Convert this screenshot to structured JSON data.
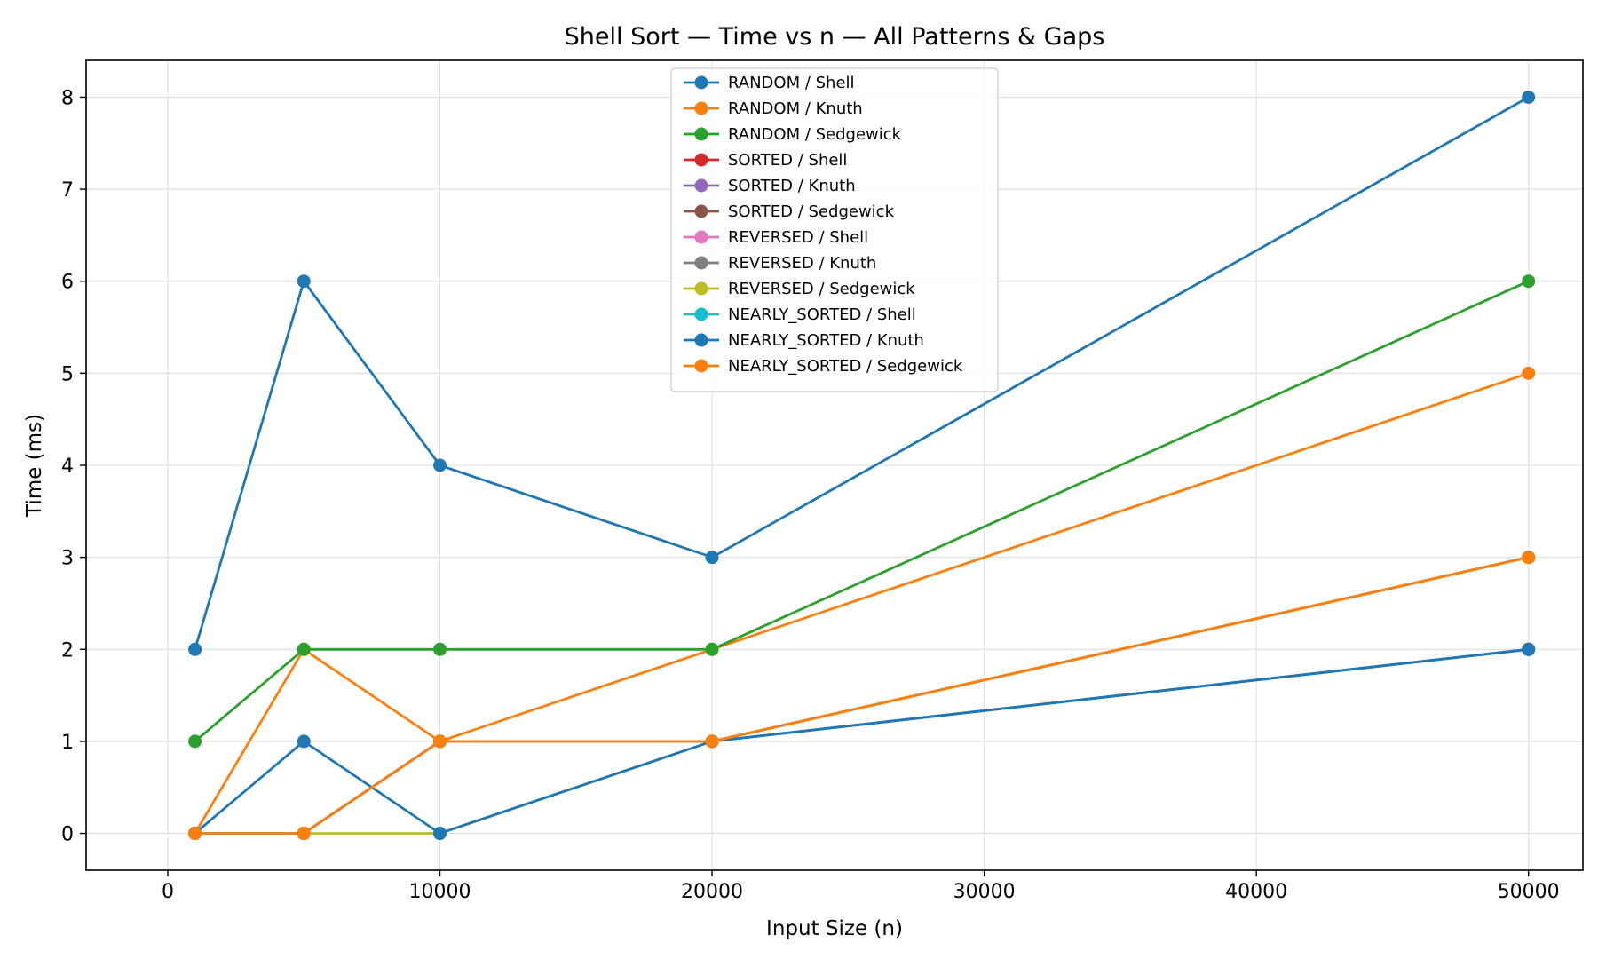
{
  "chart_data": {
    "type": "line",
    "title": "Shell Sort — Time vs n — All Patterns & Gaps",
    "xlabel": "Input Size (n)",
    "ylabel": "Time (ms)",
    "x": [
      1000,
      5000,
      10000,
      20000,
      50000
    ],
    "xlim": [
      -3000,
      52000
    ],
    "ylim": [
      -0.4,
      8.4
    ],
    "xticks": [
      0,
      10000,
      20000,
      30000,
      40000,
      50000
    ],
    "yticks": [
      0,
      1,
      2,
      3,
      4,
      5,
      6,
      7,
      8
    ],
    "grid": true,
    "legend_position": "top-center",
    "series": [
      {
        "name": "RANDOM / Shell",
        "color": "#1f77b4",
        "values": [
          2,
          6,
          4,
          3,
          8
        ]
      },
      {
        "name": "RANDOM / Knuth",
        "color": "#ff7f0e",
        "values": [
          0,
          2,
          1,
          2,
          5
        ]
      },
      {
        "name": "RANDOM / Sedgewick",
        "color": "#2ca02c",
        "values": [
          1,
          2,
          2,
          2,
          6
        ]
      },
      {
        "name": "SORTED / Shell",
        "color": "#d62728",
        "values": [
          0,
          0,
          1,
          1,
          2
        ]
      },
      {
        "name": "SORTED / Knuth",
        "color": "#9467bd",
        "values": [
          0,
          0,
          1,
          1,
          2
        ]
      },
      {
        "name": "SORTED / Sedgewick",
        "color": "#8c564b",
        "values": [
          0,
          0,
          1,
          1,
          3
        ]
      },
      {
        "name": "REVERSED / Shell",
        "color": "#e377c2",
        "values": [
          0,
          0,
          1,
          1,
          3
        ]
      },
      {
        "name": "REVERSED / Knuth",
        "color": "#7f7f7f",
        "values": [
          0,
          0,
          1,
          1,
          3
        ]
      },
      {
        "name": "REVERSED / Sedgewick",
        "color": "#bcbd22",
        "values": [
          0,
          0,
          0,
          1,
          3
        ]
      },
      {
        "name": "NEARLY_SORTED / Shell",
        "color": "#17becf",
        "values": [
          0,
          0,
          1,
          1,
          2
        ]
      },
      {
        "name": "NEARLY_SORTED / Knuth",
        "color": "#1f77b4",
        "values": [
          0,
          1,
          0,
          1,
          2
        ]
      },
      {
        "name": "NEARLY_SORTED / Sedgewick",
        "color": "#ff7f0e",
        "values": [
          0,
          0,
          1,
          1,
          3
        ]
      }
    ]
  }
}
